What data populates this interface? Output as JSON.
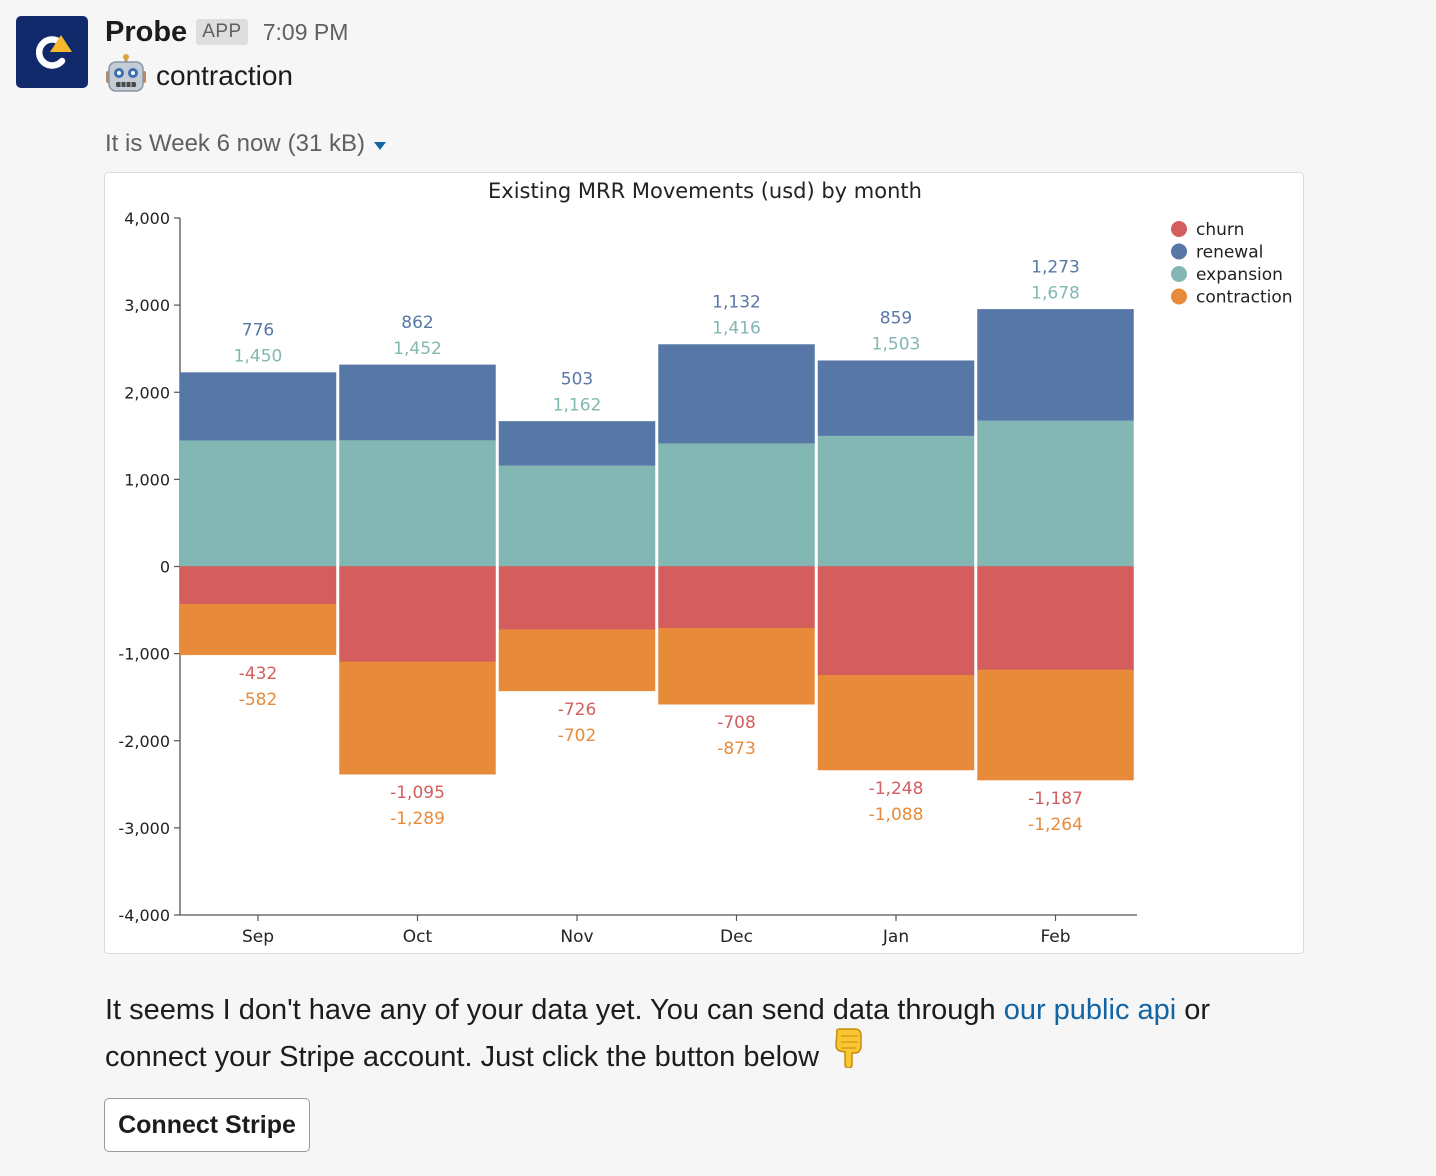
{
  "message": {
    "app_name": "Probe",
    "app_badge": "APP",
    "timestamp": "7:09 PM",
    "subtitle": "contraction",
    "file_title": "It is Week 6 now",
    "file_size": "(31 kB)",
    "body_before_link": "It seems I don't have any of your data yet. You can send data through ",
    "link_text": "our public api",
    "body_after_link": " or connect your Stripe account. Just click the button below",
    "button_label": "Connect Stripe"
  },
  "icons": {
    "avatar": "probe-logo",
    "robot": "robot-face-icon",
    "caret": "caret-down-icon",
    "pointing": "backhand-index-pointing-down-icon"
  },
  "colors": {
    "avatar_bg": "#10296b",
    "link": "#1264a3",
    "churn": "#d45d5d",
    "renewal": "#5778a6",
    "expansion": "#83b7b3",
    "contraction": "#e78b3a"
  },
  "chart_data": {
    "type": "bar",
    "stacked": true,
    "title": "Existing MRR Movements (usd) by month",
    "xlabel": "",
    "ylabel": "",
    "ylim": [
      -4000,
      4000
    ],
    "yticks": [
      4000,
      3000,
      2000,
      1000,
      0,
      -1000,
      -2000,
      -3000,
      -4000
    ],
    "ytick_labels": [
      "4,000",
      "3,000",
      "2,000",
      "1,000",
      "0",
      "-1,000",
      "-2,000",
      "-3,000",
      "-4,000"
    ],
    "categories": [
      "Sep",
      "Oct",
      "Nov",
      "Dec",
      "Jan",
      "Feb"
    ],
    "legend_position": "top-right",
    "series": [
      {
        "name": "churn",
        "color": "#d45d5d",
        "values": [
          -432,
          -1095,
          -726,
          -708,
          -1248,
          -1187
        ],
        "labels": [
          "-432",
          "-1,095",
          "-726",
          "-708",
          "-1,248",
          "-1,187"
        ]
      },
      {
        "name": "renewal",
        "color": "#5778a6",
        "values": [
          776,
          862,
          503,
          1132,
          859,
          1273
        ],
        "labels": [
          "776",
          "862",
          "503",
          "1,132",
          "859",
          "1,273"
        ]
      },
      {
        "name": "expansion",
        "color": "#83b7b3",
        "values": [
          1450,
          1452,
          1162,
          1416,
          1503,
          1678
        ],
        "labels": [
          "1,450",
          "1,452",
          "1,162",
          "1,416",
          "1,503",
          "1,678"
        ]
      },
      {
        "name": "contraction",
        "color": "#e78b3a",
        "values": [
          -582,
          -1289,
          -702,
          -873,
          -1088,
          -1264
        ],
        "labels": [
          "-582",
          "-1,289",
          "-702",
          "-873",
          "-1,088",
          "-1,264"
        ]
      }
    ]
  }
}
